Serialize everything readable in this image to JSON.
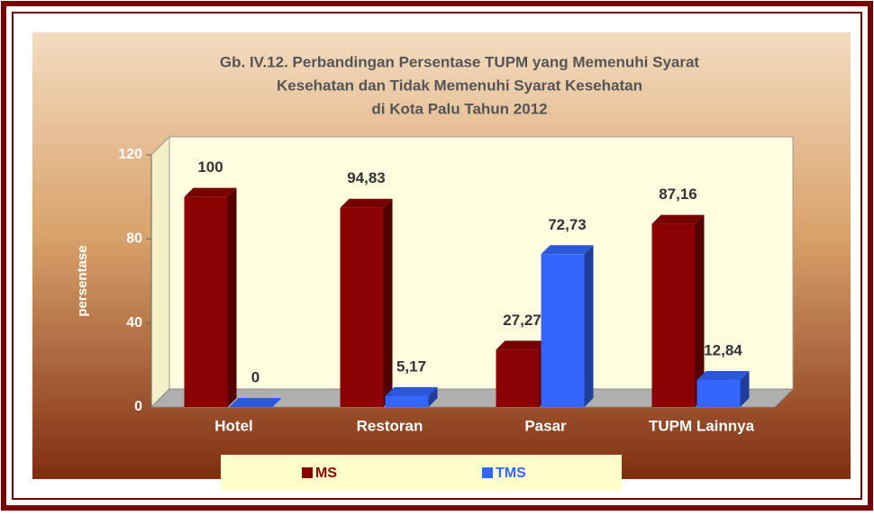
{
  "chart_data": {
    "type": "bar3d",
    "title": [
      "Gb. IV.12. Perbandingan Persentase TUPM yang Memenuhi Syarat",
      "Kesehatan dan Tidak Memenuhi Syarat Kesehatan",
      "di Kota Palu Tahun  2012"
    ],
    "ylabel": "persentase",
    "categories": [
      "Hotel",
      "Restoran",
      "Pasar",
      "TUPM Lainnya"
    ],
    "series": [
      {
        "name": "MS",
        "color": "#8b0000",
        "values": [
          100,
          94.83,
          27.27,
          87.16
        ],
        "value_labels": [
          "100",
          "94,83",
          "27,27",
          "87,16"
        ]
      },
      {
        "name": "TMS",
        "color": "#3366ff",
        "values": [
          0,
          5.17,
          72.73,
          12.84
        ],
        "value_labels": [
          "0",
          "5,17",
          "72,73",
          "12,84"
        ]
      }
    ],
    "ylim": [
      0,
      120
    ],
    "yticks": [
      0,
      40,
      80,
      120
    ],
    "legend": "bottom"
  }
}
